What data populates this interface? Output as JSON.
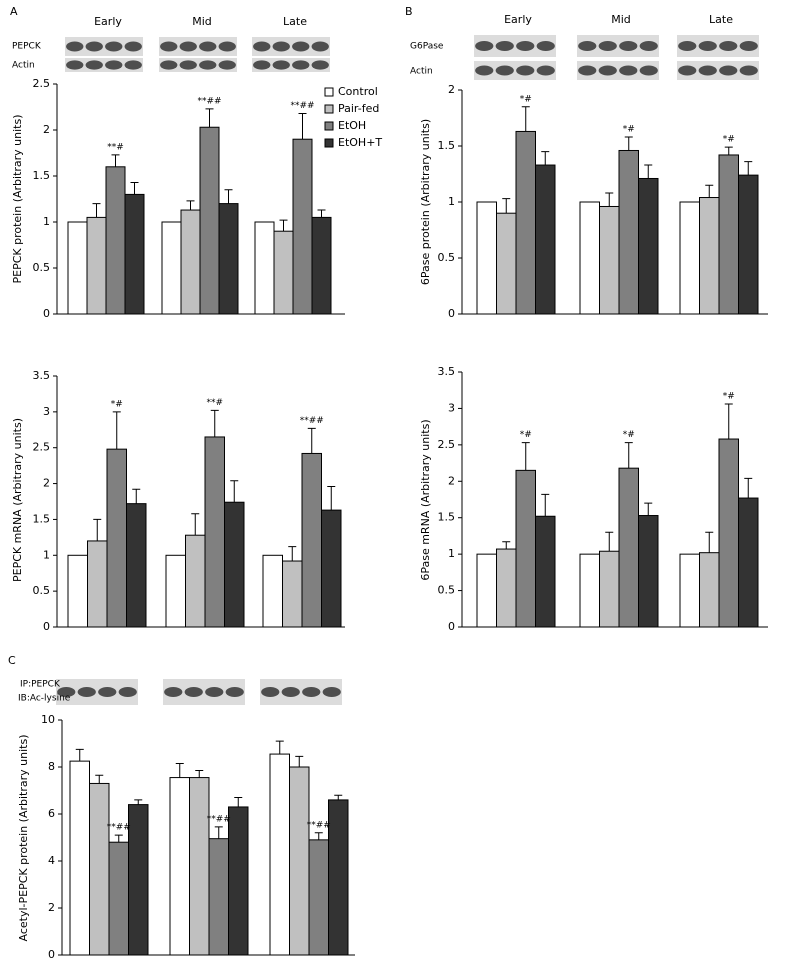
{
  "chart_data": [
    {
      "type": "bar",
      "panel": "A",
      "ylabel": "PEPCK protein (Arbitrary units)",
      "categories": [
        "Early",
        "Mid",
        "Late"
      ],
      "blot_labels": [
        "PEPCK",
        "Actin"
      ],
      "ylim": [
        0,
        2.5
      ],
      "yticks": [
        0,
        0.5,
        1,
        1.5,
        2,
        2.5
      ],
      "grid": false,
      "legend": "top-right",
      "series": [
        {
          "name": "Control",
          "color": "#ffffff",
          "values": [
            1,
            1,
            1
          ],
          "errors": [
            null,
            null,
            null
          ]
        },
        {
          "name": "Pair-fed",
          "color": "#c0c0c0",
          "values": [
            1.05,
            1.13,
            0.9
          ],
          "errors": [
            0.15,
            0.1,
            0.12
          ]
        },
        {
          "name": "EtOH",
          "color": "#808080",
          "values": [
            1.6,
            2.03,
            1.9
          ],
          "errors": [
            0.13,
            0.2,
            0.28
          ]
        },
        {
          "name": "EtOH+T",
          "color": "#333333",
          "values": [
            1.3,
            1.2,
            1.05
          ],
          "errors": [
            0.13,
            0.15,
            0.08
          ]
        }
      ],
      "annotations": [
        "**#",
        "**##",
        "**##"
      ]
    },
    {
      "type": "bar",
      "panel": "B",
      "ylabel": "6Pase protein (Arbitrary units)",
      "categories": [
        "Early",
        "Mid",
        "Late"
      ],
      "blot_labels": [
        "G6Pase",
        "Actin"
      ],
      "ylim": [
        0,
        2
      ],
      "yticks": [
        0,
        0.5,
        1,
        1.5,
        2
      ],
      "grid": false,
      "series": [
        {
          "color": "#ffffff",
          "values": [
            1,
            1,
            1
          ],
          "errors": [
            null,
            null,
            null
          ]
        },
        {
          "color": "#c0c0c0",
          "values": [
            0.9,
            0.96,
            1.04
          ],
          "errors": [
            0.13,
            0.12,
            0.11
          ]
        },
        {
          "color": "#808080",
          "values": [
            1.63,
            1.46,
            1.42
          ],
          "errors": [
            0.22,
            0.12,
            0.07
          ]
        },
        {
          "color": "#333333",
          "values": [
            1.33,
            1.21,
            1.24
          ],
          "errors": [
            0.12,
            0.12,
            0.12
          ]
        }
      ],
      "annotations": [
        "*#",
        "*#",
        "*#"
      ]
    },
    {
      "type": "bar",
      "ylabel": "PEPCK mRNA (Arbitrary units)",
      "ylim": [
        0,
        3.5
      ],
      "yticks": [
        0,
        0.5,
        1,
        1.5,
        2,
        2.5,
        3,
        3.5
      ],
      "grid": false,
      "series": [
        {
          "color": "#ffffff",
          "values": [
            1,
            1,
            1
          ],
          "errors": [
            null,
            null,
            null
          ]
        },
        {
          "color": "#c0c0c0",
          "values": [
            1.2,
            1.28,
            0.92
          ],
          "errors": [
            0.3,
            0.3,
            0.2
          ]
        },
        {
          "color": "#808080",
          "values": [
            2.48,
            2.65,
            2.42
          ],
          "errors": [
            0.52,
            0.37,
            0.35
          ]
        },
        {
          "color": "#333333",
          "values": [
            1.72,
            1.74,
            1.63
          ],
          "errors": [
            0.2,
            0.3,
            0.33
          ]
        }
      ],
      "annotations": [
        "*#",
        "**#",
        "**##"
      ]
    },
    {
      "type": "bar",
      "ylabel": "6Pase mRNA (Arbitrary units)",
      "ylim": [
        0,
        3.5
      ],
      "yticks": [
        0,
        0.5,
        1,
        1.5,
        2,
        2.5,
        3,
        3.5
      ],
      "grid": false,
      "series": [
        {
          "color": "#ffffff",
          "values": [
            1,
            1,
            1
          ],
          "errors": [
            null,
            null,
            null
          ]
        },
        {
          "color": "#c0c0c0",
          "values": [
            1.07,
            1.04,
            1.02
          ],
          "errors": [
            0.1,
            0.26,
            0.28
          ]
        },
        {
          "color": "#808080",
          "values": [
            2.15,
            2.18,
            2.58
          ],
          "errors": [
            0.38,
            0.35,
            0.48
          ]
        },
        {
          "color": "#333333",
          "values": [
            1.52,
            1.53,
            1.77
          ],
          "errors": [
            0.3,
            0.17,
            0.27
          ]
        }
      ],
      "annotations": [
        "*#",
        "*#",
        "*#"
      ]
    },
    {
      "type": "bar",
      "panel": "C",
      "ylabel": "Acetyl-PEPCK protein (Arbitrary units)",
      "blot_labels": [
        "IP:PEPCK",
        "IB:Ac-lysine"
      ],
      "ylim": [
        0,
        10
      ],
      "yticks": [
        0,
        2,
        4,
        6,
        8,
        10
      ],
      "grid": false,
      "series": [
        {
          "color": "#ffffff",
          "values": [
            8.25,
            7.55,
            8.55
          ],
          "errors": [
            0.5,
            0.6,
            0.55
          ]
        },
        {
          "color": "#c0c0c0",
          "values": [
            7.3,
            7.55,
            8.0
          ],
          "errors": [
            0.35,
            0.3,
            0.45
          ]
        },
        {
          "color": "#808080",
          "values": [
            4.8,
            4.95,
            4.9
          ],
          "errors": [
            0.3,
            0.5,
            0.3
          ]
        },
        {
          "color": "#333333",
          "values": [
            6.4,
            6.3,
            6.6
          ],
          "errors": [
            0.2,
            0.4,
            0.2
          ]
        }
      ],
      "annotations": [
        "**##",
        "**##",
        "**##"
      ]
    }
  ]
}
